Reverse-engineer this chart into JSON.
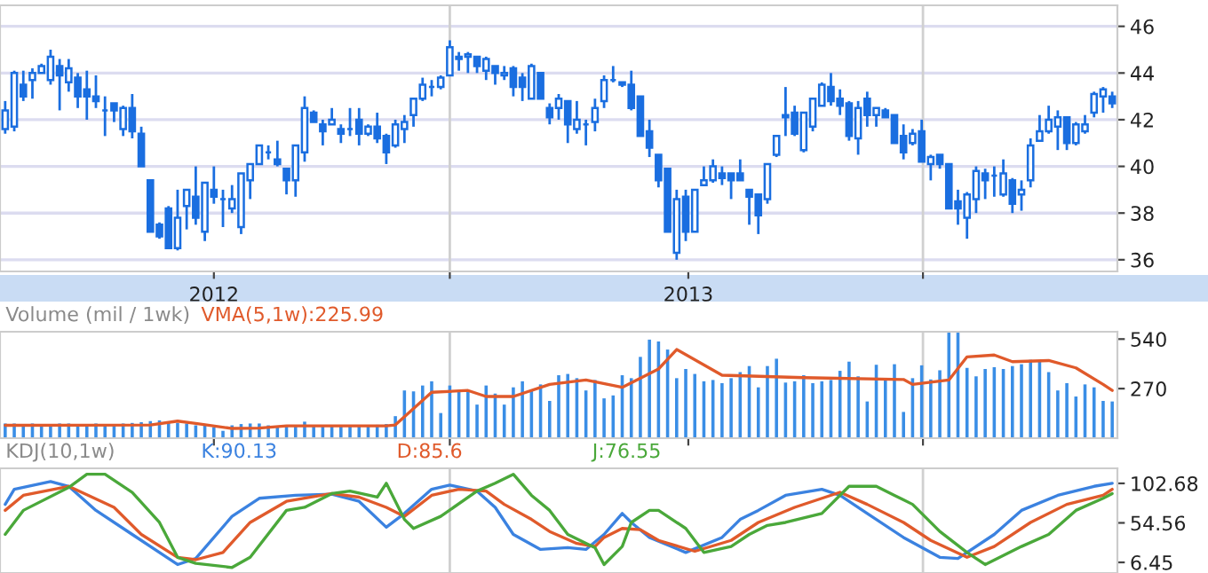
{
  "chart_data": [
    {
      "type": "candlestick",
      "color": "#1a6ee0",
      "x": [
        "2011-07-24",
        "2011-07-31",
        "2011-08-07",
        "2011-08-14",
        "2011-08-21",
        "2011-08-28",
        "2011-09-04",
        "2011-09-11",
        "2011-09-18",
        "2011-09-25",
        "2011-10-02",
        "2011-10-09",
        "2011-10-16",
        "2011-10-23",
        "2011-10-30",
        "2011-11-06",
        "2011-11-13",
        "2011-11-20",
        "2011-11-27",
        "2011-12-04",
        "2011-12-11",
        "2011-12-18",
        "2011-12-25",
        "2012-01-01",
        "2012-01-08",
        "2012-01-15",
        "2012-01-22",
        "2012-01-29",
        "2012-02-05",
        "2012-02-12",
        "2012-02-19",
        "2012-02-26",
        "2012-03-04",
        "2012-03-11",
        "2012-03-18",
        "2012-03-25",
        "2012-04-01",
        "2012-04-08",
        "2012-04-15",
        "2012-04-22",
        "2012-04-29",
        "2012-05-06",
        "2012-05-13",
        "2012-05-20",
        "2012-05-27",
        "2012-06-03",
        "2012-06-10",
        "2012-06-17",
        "2012-06-24",
        "2012-07-01",
        "2012-07-08",
        "2012-07-15",
        "2012-07-22",
        "2012-07-29",
        "2012-08-05",
        "2012-08-12",
        "2012-08-19",
        "2012-08-26",
        "2012-09-02",
        "2012-09-09",
        "2012-09-16",
        "2012-09-23",
        "2012-09-30",
        "2012-10-07",
        "2012-10-14",
        "2012-10-21",
        "2012-10-28",
        "2012-11-04",
        "2012-11-11",
        "2012-11-18",
        "2012-11-25",
        "2012-12-02",
        "2012-12-09",
        "2012-12-16",
        "2012-12-23",
        "2012-12-30",
        "2013-01-06",
        "2013-01-13",
        "2013-01-20",
        "2013-01-27",
        "2013-02-03",
        "2013-02-10",
        "2013-02-17",
        "2013-02-24",
        "2013-03-03",
        "2013-03-10",
        "2013-03-17",
        "2013-03-24",
        "2013-03-31",
        "2013-04-07",
        "2013-04-14",
        "2013-04-21",
        "2013-04-28",
        "2013-05-05",
        "2013-05-12",
        "2013-05-19",
        "2013-05-26",
        "2013-06-02",
        "2013-06-09",
        "2013-06-16",
        "2013-06-23",
        "2013-06-30",
        "2013-07-07",
        "2013-07-14",
        "2013-07-21",
        "2013-07-28",
        "2013-08-04",
        "2013-08-11",
        "2013-08-18",
        "2013-08-25",
        "2013-09-01",
        "2013-09-08",
        "2013-09-15",
        "2013-09-22",
        "2013-09-29",
        "2013-10-06",
        "2013-10-13",
        "2013-10-20",
        "2013-10-27",
        "2013-11-03",
        "2013-11-10",
        "2013-11-17",
        "2013-11-24"
      ],
      "ohlc": [
        [
          41.6,
          42.8,
          41.4,
          42.4
        ],
        [
          41.7,
          44.1,
          41.5,
          44.0
        ],
        [
          43.5,
          44.1,
          42.8,
          43.0
        ],
        [
          43.7,
          44.2,
          42.9,
          44.0
        ],
        [
          44.0,
          44.4,
          44.0,
          44.3
        ],
        [
          43.7,
          45.0,
          43.5,
          44.7
        ],
        [
          44.3,
          44.6,
          42.4,
          43.9
        ],
        [
          43.6,
          44.6,
          43.2,
          44.2
        ],
        [
          43.8,
          44.0,
          42.5,
          43.0
        ],
        [
          43.3,
          44.1,
          42.0,
          43.0
        ],
        [
          43.0,
          43.9,
          42.5,
          42.8
        ],
        [
          42.4,
          43.0,
          41.3,
          42.4
        ],
        [
          42.7,
          42.7,
          41.9,
          42.4
        ],
        [
          41.6,
          42.6,
          41.3,
          42.5
        ],
        [
          42.5,
          43.1,
          41.2,
          41.5
        ],
        [
          41.4,
          41.7,
          40.0,
          40.0
        ],
        [
          39.4,
          39.4,
          37.2,
          37.2
        ],
        [
          37.5,
          37.6,
          36.9,
          37.0
        ],
        [
          38.2,
          38.3,
          36.5,
          36.5
        ],
        [
          36.5,
          39.0,
          36.4,
          37.8
        ],
        [
          38.3,
          39.0,
          37.3,
          39.0
        ],
        [
          38.7,
          40.0,
          37.5,
          37.8
        ],
        [
          37.2,
          39.3,
          36.8,
          39.3
        ],
        [
          39.0,
          40.0,
          38.4,
          38.7
        ],
        [
          38.6,
          39.0,
          37.4,
          38.6
        ],
        [
          38.2,
          39.2,
          38.0,
          38.6
        ],
        [
          37.4,
          39.7,
          37.1,
          39.7
        ],
        [
          39.4,
          40.1,
          38.6,
          40.1
        ],
        [
          40.1,
          40.9,
          40.1,
          40.9
        ],
        [
          40.6,
          40.9,
          40.3,
          40.6
        ],
        [
          40.3,
          41.1,
          40.0,
          40.1
        ],
        [
          39.9,
          39.9,
          38.8,
          39.4
        ],
        [
          39.4,
          40.9,
          38.7,
          40.9
        ],
        [
          40.6,
          43.0,
          40.2,
          42.5
        ],
        [
          42.3,
          42.4,
          41.9,
          41.9
        ],
        [
          41.8,
          42.0,
          40.9,
          41.5
        ],
        [
          41.8,
          42.5,
          41.8,
          42.0
        ],
        [
          41.6,
          41.8,
          41.0,
          41.4
        ],
        [
          41.6,
          42.5,
          41.3,
          41.6
        ],
        [
          42.0,
          42.5,
          40.9,
          41.4
        ],
        [
          41.4,
          41.8,
          41.3,
          41.7
        ],
        [
          41.7,
          42.3,
          41.0,
          41.2
        ],
        [
          41.3,
          41.4,
          40.1,
          40.6
        ],
        [
          40.9,
          42.0,
          40.8,
          41.8
        ],
        [
          41.6,
          42.2,
          41.0,
          41.9
        ],
        [
          42.2,
          42.9,
          41.7,
          42.9
        ],
        [
          42.9,
          43.8,
          42.8,
          43.5
        ],
        [
          43.4,
          43.7,
          43.0,
          43.4
        ],
        [
          43.4,
          43.9,
          43.3,
          43.8
        ],
        [
          43.9,
          45.4,
          43.9,
          45.1
        ],
        [
          44.7,
          44.9,
          44.1,
          44.6
        ],
        [
          44.7,
          44.9,
          44.0,
          44.8
        ],
        [
          44.7,
          44.7,
          44.0,
          44.3
        ],
        [
          44.1,
          44.7,
          43.7,
          44.6
        ],
        [
          44.3,
          44.3,
          43.5,
          44.0
        ],
        [
          43.9,
          44.3,
          43.7,
          44.0
        ],
        [
          44.2,
          44.3,
          43.0,
          43.4
        ],
        [
          43.8,
          44.0,
          42.8,
          43.4
        ],
        [
          42.9,
          44.4,
          42.9,
          44.3
        ],
        [
          44.0,
          44.0,
          42.9,
          42.9
        ],
        [
          42.5,
          42.7,
          41.8,
          42.1
        ],
        [
          42.5,
          43.1,
          42.0,
          42.9
        ],
        [
          42.8,
          42.8,
          41.0,
          41.8
        ],
        [
          41.6,
          42.8,
          41.4,
          42.0
        ],
        [
          41.8,
          42.0,
          40.9,
          41.8
        ],
        [
          41.9,
          42.9,
          41.5,
          42.5
        ],
        [
          42.8,
          43.9,
          42.5,
          43.7
        ],
        [
          43.7,
          44.3,
          43.6,
          43.7
        ],
        [
          43.6,
          43.6,
          43.4,
          43.5
        ],
        [
          43.5,
          44.1,
          42.4,
          42.5
        ],
        [
          43.0,
          43.0,
          41.3,
          41.3
        ],
        [
          41.5,
          42.0,
          40.4,
          40.8
        ],
        [
          40.5,
          40.5,
          39.1,
          39.4
        ],
        [
          39.9,
          39.9,
          37.2,
          37.2
        ],
        [
          36.3,
          39.0,
          36.0,
          38.6
        ],
        [
          38.7,
          39.0,
          36.8,
          37.2
        ],
        [
          37.2,
          39.0,
          37.2,
          39.0
        ],
        [
          39.2,
          40.0,
          39.2,
          39.4
        ],
        [
          39.4,
          40.3,
          39.3,
          40.0
        ],
        [
          39.7,
          40.0,
          39.2,
          39.5
        ],
        [
          39.7,
          39.7,
          38.6,
          39.4
        ],
        [
          39.7,
          40.3,
          39.4,
          39.4
        ],
        [
          39.0,
          39.0,
          37.5,
          38.7
        ],
        [
          38.8,
          38.8,
          37.1,
          37.9
        ],
        [
          38.6,
          40.1,
          38.4,
          40.1
        ],
        [
          40.5,
          41.3,
          40.4,
          41.3
        ],
        [
          42.1,
          43.4,
          41.3,
          42.2
        ],
        [
          42.3,
          42.6,
          41.3,
          41.4
        ],
        [
          40.7,
          42.3,
          40.6,
          42.3
        ],
        [
          41.7,
          42.9,
          41.5,
          42.9
        ],
        [
          42.6,
          43.6,
          42.6,
          43.5
        ],
        [
          43.4,
          44.0,
          42.6,
          42.8
        ],
        [
          42.9,
          43.3,
          42.2,
          42.6
        ],
        [
          42.7,
          42.8,
          41.1,
          41.3
        ],
        [
          41.2,
          42.8,
          40.5,
          42.5
        ],
        [
          42.9,
          43.2,
          41.7,
          42.2
        ],
        [
          42.2,
          42.5,
          41.7,
          42.5
        ],
        [
          42.4,
          42.5,
          42.1,
          42.1
        ],
        [
          42.2,
          42.2,
          41.0,
          41.0
        ],
        [
          41.3,
          41.8,
          40.3,
          40.6
        ],
        [
          41.0,
          41.6,
          40.9,
          41.4
        ],
        [
          41.5,
          42.0,
          40.2,
          40.2
        ],
        [
          40.1,
          40.5,
          39.4,
          40.4
        ],
        [
          40.5,
          40.5,
          39.9,
          40.1
        ],
        [
          40.1,
          40.1,
          38.2,
          38.2
        ],
        [
          38.5,
          39.0,
          37.5,
          38.2
        ],
        [
          37.8,
          38.9,
          36.9,
          38.8
        ],
        [
          38.6,
          40.0,
          38.0,
          39.8
        ],
        [
          39.7,
          39.9,
          38.6,
          39.4
        ],
        [
          39.6,
          40.0,
          38.7,
          39.6
        ],
        [
          38.8,
          40.3,
          38.7,
          39.7
        ],
        [
          39.4,
          39.5,
          38.0,
          38.4
        ],
        [
          38.8,
          39.4,
          38.1,
          39.0
        ],
        [
          39.4,
          41.2,
          39.1,
          40.9
        ],
        [
          41.1,
          42.2,
          41.1,
          41.5
        ],
        [
          41.5,
          42.6,
          41.4,
          42.0
        ],
        [
          41.7,
          42.4,
          40.7,
          42.1
        ],
        [
          42.1,
          42.1,
          40.7,
          41.0
        ],
        [
          41.0,
          41.9,
          40.9,
          41.8
        ],
        [
          41.5,
          42.2,
          41.4,
          41.8
        ],
        [
          42.3,
          43.2,
          42.1,
          43.1
        ],
        [
          43.0,
          43.4,
          42.3,
          43.3
        ],
        [
          43.0,
          43.2,
          42.5,
          42.7
        ]
      ],
      "xlim": [
        "2011-07-20",
        "2013-11-28"
      ],
      "ylim": [
        35.5,
        46.9
      ],
      "xticks": [
        "2012",
        {
          "value": "2012-07-01",
          "label": null
        },
        "2013",
        {
          "value": "2013-07-01",
          "label": null
        }
      ],
      "yticks": [
        36,
        38,
        40,
        42,
        44,
        46
      ],
      "grid": "y",
      "ref_lines": [
        {
          "axis": "x",
          "value": "2012-07-01",
          "color": "#d0d0d0"
        },
        {
          "axis": "x",
          "value": "2013-07-01",
          "color": "#d0d0d0"
        }
      ]
    },
    {
      "type": "bar",
      "title": "Volume (mil / 1wk)",
      "x": [
        "2011-07-24",
        "2011-07-31",
        "2011-08-07",
        "2011-08-14",
        "2011-08-21",
        "2011-08-28",
        "2011-09-04",
        "2011-09-11",
        "2011-09-18",
        "2011-09-25",
        "2011-10-02",
        "2011-10-09",
        "2011-10-16",
        "2011-10-23",
        "2011-10-30",
        "2011-11-06",
        "2011-11-13",
        "2011-11-20",
        "2011-11-27",
        "2011-12-04",
        "2011-12-11",
        "2011-12-18",
        "2011-12-25",
        "2012-01-01",
        "2012-01-08",
        "2012-01-15",
        "2012-01-22",
        "2012-01-29",
        "2012-02-05",
        "2012-02-12",
        "2012-02-19",
        "2012-02-26",
        "2012-03-04",
        "2012-03-11",
        "2012-03-18",
        "2012-03-25",
        "2012-04-01",
        "2012-04-08",
        "2012-04-15",
        "2012-04-22",
        "2012-04-29",
        "2012-05-06",
        "2012-05-13",
        "2012-05-20",
        "2012-05-27",
        "2012-06-03",
        "2012-06-10",
        "2012-06-17",
        "2012-06-24",
        "2012-07-01",
        "2012-07-08",
        "2012-07-15",
        "2012-07-22",
        "2012-07-29",
        "2012-08-05",
        "2012-08-12",
        "2012-08-19",
        "2012-08-26",
        "2012-09-02",
        "2012-09-09",
        "2012-09-16",
        "2012-09-23",
        "2012-09-30",
        "2012-10-07",
        "2012-10-14",
        "2012-10-21",
        "2012-10-28",
        "2012-11-04",
        "2012-11-11",
        "2012-11-18",
        "2012-11-25",
        "2012-12-02",
        "2012-12-09",
        "2012-12-16",
        "2012-12-23",
        "2012-12-30",
        "2013-01-06",
        "2013-01-13",
        "2013-01-20",
        "2013-01-27",
        "2013-02-03",
        "2013-02-10",
        "2013-02-17",
        "2013-02-24",
        "2013-03-03",
        "2013-03-10",
        "2013-03-17",
        "2013-03-24",
        "2013-03-31",
        "2013-04-07",
        "2013-04-14",
        "2013-04-21",
        "2013-04-28",
        "2013-05-05",
        "2013-05-12",
        "2013-05-19",
        "2013-05-26",
        "2013-06-02",
        "2013-06-09",
        "2013-06-16",
        "2013-06-23",
        "2013-06-30",
        "2013-07-07",
        "2013-07-14",
        "2013-07-21",
        "2013-07-28",
        "2013-08-04",
        "2013-08-11",
        "2013-08-18",
        "2013-08-25",
        "2013-09-01",
        "2013-09-08",
        "2013-09-15",
        "2013-09-22",
        "2013-09-29",
        "2013-10-06",
        "2013-10-13",
        "2013-10-20",
        "2013-10-27",
        "2013-11-03",
        "2013-11-10",
        "2013-11-17",
        "2013-11-24"
      ],
      "series": [
        {
          "color": "#3a8ee6",
          "values": [
            80,
            80,
            77,
            80,
            70,
            77,
            80,
            80,
            77,
            77,
            80,
            77,
            77,
            80,
            83,
            87,
            93,
            97,
            90,
            83,
            80,
            70,
            70,
            60,
            40,
            70,
            77,
            80,
            80,
            70,
            60,
            63,
            70,
            90,
            70,
            70,
            70,
            70,
            70,
            70,
            70,
            73,
            77,
            120,
            260,
            255,
            287,
            310,
            137,
            287,
            260,
            260,
            183,
            287,
            243,
            183,
            277,
            310,
            260,
            293,
            203,
            343,
            350,
            327,
            260,
            317,
            217,
            233,
            343,
            327,
            443,
            537,
            527,
            483,
            327,
            377,
            350,
            310,
            317,
            300,
            327,
            360,
            393,
            277,
            393,
            433,
            303,
            310,
            343,
            300,
            310,
            317,
            367,
            417,
            337,
            200,
            400,
            327,
            403,
            143,
            327,
            397,
            320,
            370,
            575,
            575,
            383,
            337,
            377,
            387,
            377,
            393,
            403,
            427,
            417,
            360,
            260,
            300,
            227,
            293,
            277,
            203,
            200
          ]
        },
        {
          "type": "line",
          "name": "VMA(5,1w):225.99",
          "color": "#e05a2b",
          "x": [
            "2011-07-24",
            "2011-11-13",
            "2011-12-04",
            "2011-12-18",
            "2012-01-15",
            "2012-02-05",
            "2012-02-26",
            "2012-05-13",
            "2012-05-20",
            "2012-06-17",
            "2012-07-15",
            "2012-07-29",
            "2012-08-19",
            "2012-09-16",
            "2012-10-14",
            "2012-11-11",
            "2012-12-09",
            "2012-12-23",
            "2013-01-27",
            "2013-03-31",
            "2013-06-16",
            "2013-06-23",
            "2013-07-21",
            "2013-08-04",
            "2013-08-25",
            "2013-09-08",
            "2013-10-06",
            "2013-10-27",
            "2013-11-17",
            "2013-11-24"
          ],
          "values": [
            70,
            72,
            93,
            80,
            53,
            55,
            67,
            67,
            72,
            250,
            260,
            227,
            227,
            293,
            317,
            277,
            377,
            483,
            343,
            330,
            320,
            293,
            317,
            443,
            453,
            417,
            423,
            383,
            293,
            260
          ]
        }
      ],
      "xlim": [
        "2011-07-20",
        "2013-11-28"
      ],
      "ylim": [
        0,
        580
      ],
      "xticks": [
        "2012",
        {
          "value": "2012-07-01",
          "label": null
        },
        "2013",
        {
          "value": "2013-07-01",
          "label": null
        }
      ],
      "yticks": [
        270,
        540
      ],
      "tick_labels": "y",
      "ref_lines": [
        {
          "axis": "x",
          "value": "2012-07-01",
          "color": "#d0d0d0"
        },
        {
          "axis": "x",
          "value": "2013-07-01",
          "color": "#d0d0d0"
        }
      ]
    },
    {
      "type": "line",
      "title": "KDJ(10,1w)",
      "series": [
        {
          "name": "K:90.13",
          "color": "#3b82e0",
          "x": [
            "2011-07-24",
            "2011-07-31",
            "2011-08-28",
            "2011-09-11",
            "2011-10-02",
            "2011-10-30",
            "2011-11-27",
            "2011-12-04",
            "2011-12-18",
            "2012-01-15",
            "2012-02-05",
            "2012-03-04",
            "2012-04-01",
            "2012-04-22",
            "2012-05-13",
            "2012-05-27",
            "2012-06-17",
            "2012-07-01",
            "2012-07-22",
            "2012-08-05",
            "2012-08-19",
            "2012-09-09",
            "2012-09-30",
            "2012-10-14",
            "2012-10-28",
            "2012-11-11",
            "2012-11-18",
            "2012-12-02",
            "2012-12-30",
            "2013-01-27",
            "2013-02-10",
            "2013-02-24",
            "2013-03-17",
            "2013-04-14",
            "2013-04-28",
            "2013-05-19",
            "2013-06-16",
            "2013-07-14",
            "2013-07-28",
            "2013-08-25",
            "2013-09-15",
            "2013-10-13",
            "2013-11-10",
            "2013-11-24"
          ],
          "values": [
            77.1,
            95.5,
            105,
            99.1,
            69.8,
            40.5,
            11.2,
            3.8,
            11.2,
            62.5,
            84.5,
            88.1,
            89.6,
            80.8,
            49.3,
            66.1,
            95.5,
            100.6,
            93.3,
            73.5,
            40.5,
            22.2,
            24.4,
            22.2,
            40.5,
            66.1,
            55.1,
            36.8,
            18.5,
            36.8,
            58.8,
            69.8,
            88.1,
            95.5,
            88.1,
            66.1,
            36.8,
            12.6,
            11.2,
            40.5,
            69.8,
            88.1,
            99.1,
            102.8
          ]
        },
        {
          "name": "D:85.6",
          "color": "#e05a2b",
          "x": [
            "2011-07-24",
            "2011-08-07",
            "2011-09-11",
            "2011-10-16",
            "2011-11-06",
            "2011-12-04",
            "2011-12-18",
            "2012-01-08",
            "2012-01-29",
            "2012-02-26",
            "2012-04-01",
            "2012-04-22",
            "2012-05-13",
            "2012-05-27",
            "2012-06-17",
            "2012-07-08",
            "2012-07-29",
            "2012-08-12",
            "2012-09-02",
            "2012-09-16",
            "2012-10-07",
            "2012-10-21",
            "2012-10-28",
            "2012-11-11",
            "2012-11-25",
            "2012-12-09",
            "2013-01-06",
            "2013-02-03",
            "2013-02-24",
            "2013-03-24",
            "2013-04-28",
            "2013-05-19",
            "2013-06-16",
            "2013-07-07",
            "2013-08-04",
            "2013-08-25",
            "2013-09-22",
            "2013-10-20",
            "2013-11-17",
            "2013-11-24"
          ],
          "values": [
            69.8,
            88.1,
            99.1,
            73.5,
            40.5,
            12.6,
            9.7,
            18.5,
            55.1,
            80.8,
            90.3,
            85.9,
            73.5,
            62.5,
            88.1,
            95.5,
            93.3,
            77.1,
            58.8,
            44.1,
            29.5,
            25.8,
            36.8,
            47.8,
            46.3,
            33.2,
            20.0,
            33.2,
            55.1,
            73.5,
            91.8,
            77.1,
            55.1,
            33.2,
            12.6,
            25.8,
            55.1,
            77.1,
            88.1,
            95.5
          ]
        },
        {
          "name": "J:76.55",
          "color": "#4aa83a",
          "x": [
            "2011-07-24",
            "2011-08-07",
            "2011-09-11",
            "2011-09-25",
            "2011-10-09",
            "2011-10-30",
            "2011-11-20",
            "2011-12-04",
            "2011-12-18",
            "2012-01-15",
            "2012-01-29",
            "2012-02-26",
            "2012-03-11",
            "2012-04-01",
            "2012-04-15",
            "2012-05-06",
            "2012-05-13",
            "2012-05-27",
            "2012-06-03",
            "2012-06-24",
            "2012-07-22",
            "2012-08-05",
            "2012-08-19",
            "2012-09-02",
            "2012-09-16",
            "2012-09-30",
            "2012-10-21",
            "2012-10-28",
            "2012-11-11",
            "2012-11-18",
            "2012-12-02",
            "2012-12-09",
            "2012-12-30",
            "2013-01-13",
            "2013-02-03",
            "2013-02-17",
            "2013-03-03",
            "2013-03-17",
            "2013-04-14",
            "2013-05-05",
            "2013-05-26",
            "2013-06-09",
            "2013-06-23",
            "2013-07-14",
            "2013-08-04",
            "2013-08-18",
            "2013-09-15",
            "2013-10-06",
            "2013-10-27",
            "2013-11-17",
            "2013-11-24"
          ],
          "values": [
            40.5,
            69.8,
            97.7,
            113.8,
            113.8,
            91.8,
            55.1,
            12.6,
            5.3,
            0.2,
            12.6,
            69.8,
            73.5,
            90.3,
            93.3,
            85.9,
            102.8,
            58.8,
            47.8,
            62.5,
            93.3,
            102.8,
            113.8,
            88.1,
            69.8,
            40.5,
            24.4,
            3.8,
            25.8,
            55.1,
            69.8,
            69.8,
            47.8,
            18.5,
            25.8,
            40.5,
            51.5,
            55.1,
            66.1,
            99.1,
            99.1,
            88.1,
            77.1,
            44.1,
            18.5,
            3.8,
            25.8,
            40.5,
            69.8,
            84.5,
            90.3
          ]
        }
      ],
      "xlim": [
        "2011-07-20",
        "2013-11-28"
      ],
      "ylim": [
        -6.5,
        121
      ],
      "xticks": [
        "2012",
        {
          "value": "2012-07-01",
          "label": null
        },
        "2013",
        {
          "value": "2013-07-01",
          "label": null
        }
      ],
      "yticks": [
        6.45,
        54.56,
        102.68
      ],
      "tick_labels": "y",
      "ref_lines": [
        {
          "axis": "x",
          "value": "2012-07-01",
          "color": "#d0d0d0"
        },
        {
          "axis": "x",
          "value": "2013-07-01",
          "color": "#d0d0d0"
        }
      ]
    }
  ]
}
